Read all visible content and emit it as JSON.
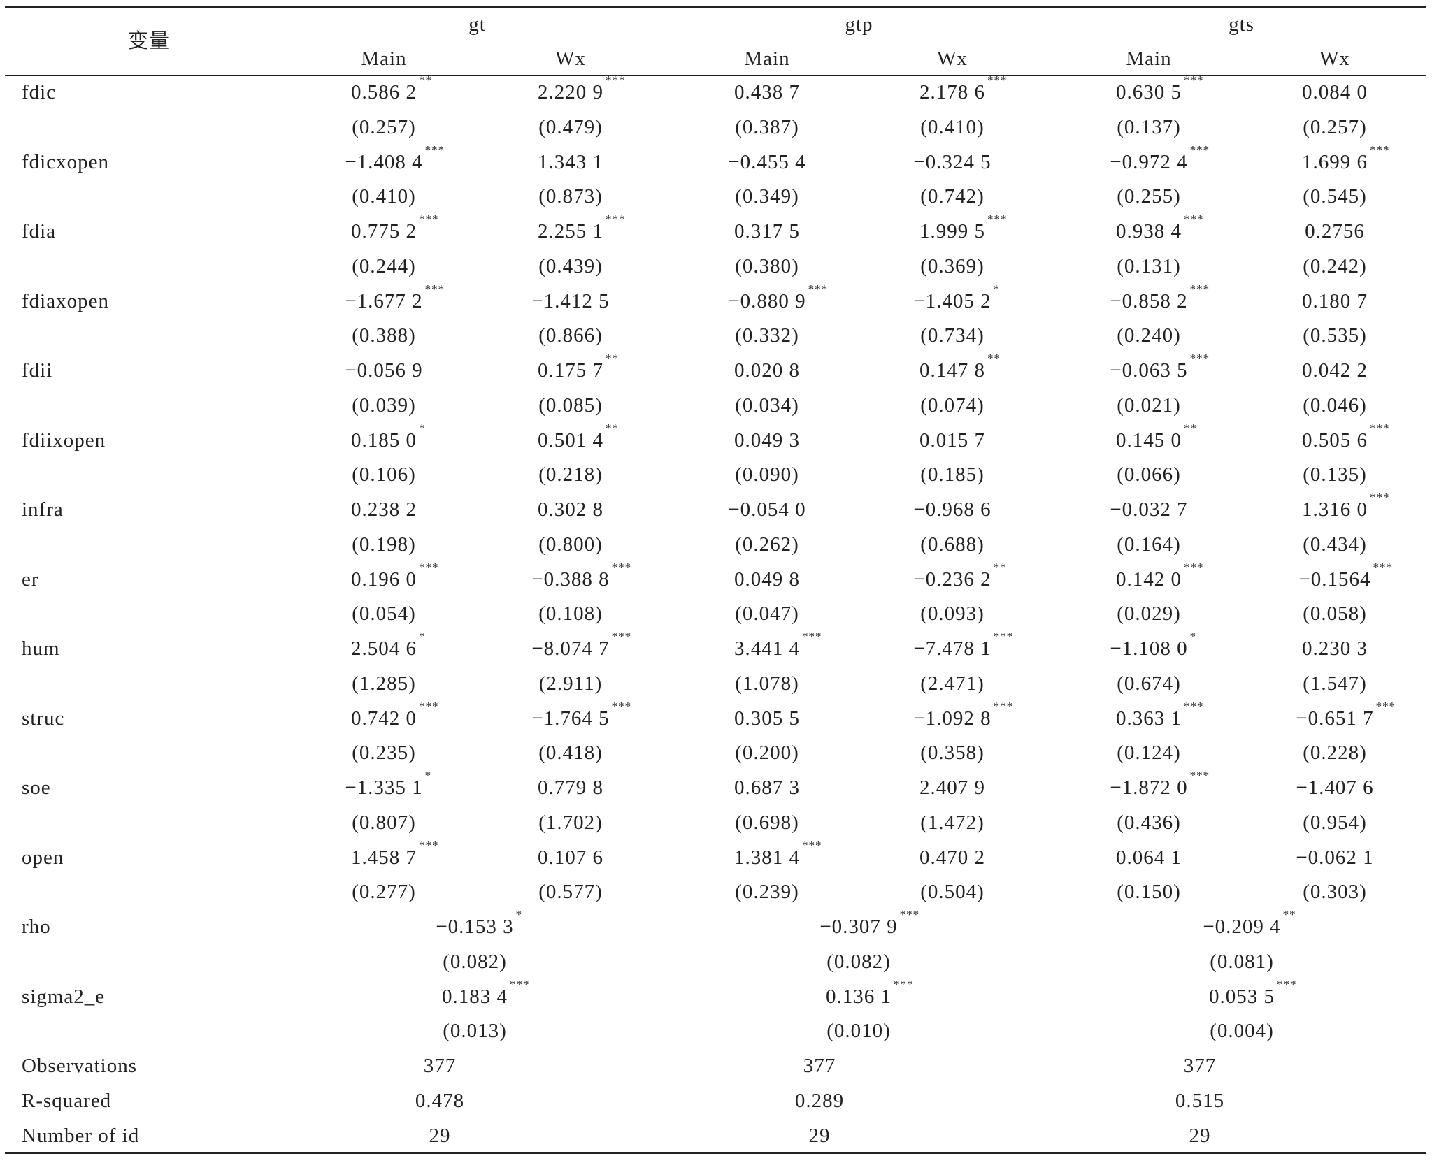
{
  "table": {
    "corner": "变量",
    "groups": [
      "gt",
      "gtp",
      "gts"
    ],
    "subheaders": [
      "Main",
      "Wx",
      "Main",
      "Wx",
      "Main",
      "Wx"
    ],
    "rows": [
      {
        "label": "fdic",
        "cells": [
          {
            "coef": "0.586 2",
            "stars": "**",
            "se": "(0.257)"
          },
          {
            "coef": "2.220 9",
            "stars": "***",
            "se": "(0.479)"
          },
          {
            "coef": "0.438 7",
            "se": "(0.387)"
          },
          {
            "coef": "2.178 6",
            "stars": "***",
            "se": "(0.410)"
          },
          {
            "coef": "0.630 5",
            "stars": "***",
            "se": "(0.137)"
          },
          {
            "coef": "0.084 0",
            "se": "(0.257)"
          }
        ]
      },
      {
        "label": "fdicxopen",
        "cells": [
          {
            "coef": "−1.408 4",
            "stars": "***",
            "se": "(0.410)"
          },
          {
            "coef": "1.343 1",
            "se": "(0.873)"
          },
          {
            "coef": "−0.455 4",
            "se": "(0.349)"
          },
          {
            "coef": "−0.324 5",
            "se": "(0.742)"
          },
          {
            "coef": "−0.972 4",
            "stars": "***",
            "se": "(0.255)"
          },
          {
            "coef": "1.699 6",
            "stars": "***",
            "se": "(0.545)"
          }
        ]
      },
      {
        "label": "fdia",
        "cells": [
          {
            "coef": "0.775 2",
            "stars": "***",
            "se": "(0.244)"
          },
          {
            "coef": "2.255 1",
            "stars": "***",
            "se": "(0.439)"
          },
          {
            "coef": "0.317 5",
            "se": "(0.380)"
          },
          {
            "coef": "1.999 5",
            "stars": "***",
            "se": "(0.369)"
          },
          {
            "coef": "0.938 4",
            "stars": "***",
            "se": "(0.131)"
          },
          {
            "coef": "0.2756",
            "se": "(0.242)"
          }
        ]
      },
      {
        "label": "fdiaxopen",
        "cells": [
          {
            "coef": "−1.677 2",
            "stars": "***",
            "se": "(0.388)"
          },
          {
            "coef": "−1.412 5",
            "se": "(0.866)"
          },
          {
            "coef": "−0.880 9",
            "stars": "***",
            "se": "(0.332)"
          },
          {
            "coef": "−1.405 2",
            "stars": "*",
            "se": "(0.734)"
          },
          {
            "coef": "−0.858 2",
            "stars": "***",
            "se": "(0.240)"
          },
          {
            "coef": "0.180 7",
            "se": "(0.535)"
          }
        ]
      },
      {
        "label": "fdii",
        "cells": [
          {
            "coef": "−0.056 9",
            "se": "(0.039)"
          },
          {
            "coef": "0.175 7",
            "stars": "**",
            "se": "(0.085)"
          },
          {
            "coef": "0.020 8",
            "se": "(0.034)"
          },
          {
            "coef": "0.147 8",
            "stars": "**",
            "se": "(0.074)"
          },
          {
            "coef": "−0.063 5",
            "stars": "***",
            "se": "(0.021)"
          },
          {
            "coef": "0.042 2",
            "se": "(0.046)"
          }
        ]
      },
      {
        "label": "fdiixopen",
        "cells": [
          {
            "coef": "0.185 0",
            "stars": "*",
            "se": "(0.106)"
          },
          {
            "coef": "0.501 4",
            "stars": "**",
            "se": "(0.218)"
          },
          {
            "coef": "0.049 3",
            "se": "(0.090)"
          },
          {
            "coef": "0.015 7",
            "se": "(0.185)"
          },
          {
            "coef": "0.145 0",
            "stars": "**",
            "se": "(0.066)"
          },
          {
            "coef": "0.505 6",
            "stars": "***",
            "se": "(0.135)"
          }
        ]
      },
      {
        "label": "infra",
        "cells": [
          {
            "coef": "0.238 2",
            "se": "(0.198)"
          },
          {
            "coef": "0.302 8",
            "se": "(0.800)"
          },
          {
            "coef": "−0.054 0",
            "se": "(0.262)"
          },
          {
            "coef": "−0.968 6",
            "se": "(0.688)"
          },
          {
            "coef": "−0.032 7",
            "se": "(0.164)"
          },
          {
            "coef": "1.316 0",
            "stars": "***",
            "se": "(0.434)"
          }
        ]
      },
      {
        "label": "er",
        "cells": [
          {
            "coef": "0.196 0",
            "stars": "***",
            "se": "(0.054)"
          },
          {
            "coef": "−0.388 8",
            "stars": "***",
            "se": "(0.108)"
          },
          {
            "coef": "0.049 8",
            "se": "(0.047)"
          },
          {
            "coef": "−0.236 2",
            "stars": "**",
            "se": "(0.093)"
          },
          {
            "coef": "0.142 0",
            "stars": "***",
            "se": "(0.029)"
          },
          {
            "coef": "−0.1564",
            "stars": "***",
            "se": "(0.058)"
          }
        ]
      },
      {
        "label": "hum",
        "cells": [
          {
            "coef": "2.504 6",
            "stars": "*",
            "se": "(1.285)"
          },
          {
            "coef": "−8.074 7",
            "stars": "***",
            "se": "(2.911)"
          },
          {
            "coef": "3.441 4",
            "stars": "***",
            "se": "(1.078)"
          },
          {
            "coef": "−7.478 1",
            "stars": "***",
            "se": "(2.471)"
          },
          {
            "coef": "−1.108 0",
            "stars": "*",
            "se": "(0.674)"
          },
          {
            "coef": "0.230 3",
            "se": "(1.547)"
          }
        ]
      },
      {
        "label": "struc",
        "cells": [
          {
            "coef": "0.742 0",
            "stars": "***",
            "se": "(0.235)"
          },
          {
            "coef": "−1.764 5",
            "stars": "***",
            "se": "(0.418)"
          },
          {
            "coef": "0.305 5",
            "se": "(0.200)"
          },
          {
            "coef": "−1.092 8",
            "stars": "***",
            "se": "(0.358)"
          },
          {
            "coef": "0.363 1",
            "stars": "***",
            "se": "(0.124)"
          },
          {
            "coef": "−0.651 7",
            "stars": "***",
            "se": "(0.228)"
          }
        ]
      },
      {
        "label": "soe",
        "cells": [
          {
            "coef": "−1.335 1",
            "stars": "*",
            "se": "(0.807)"
          },
          {
            "coef": "0.779 8",
            "se": "(1.702)"
          },
          {
            "coef": "0.687 3",
            "se": "(0.698)"
          },
          {
            "coef": "2.407 9",
            "se": "(1.472)"
          },
          {
            "coef": "−1.872 0",
            "stars": "***",
            "se": "(0.436)"
          },
          {
            "coef": "−1.407 6",
            "se": "(0.954)"
          }
        ]
      },
      {
        "label": "open",
        "cells": [
          {
            "coef": "1.458 7",
            "stars": "***",
            "se": "(0.277)"
          },
          {
            "coef": "0.107 6",
            "se": "(0.577)"
          },
          {
            "coef": "1.381 4",
            "stars": "***",
            "se": "(0.239)"
          },
          {
            "coef": "0.470 2",
            "se": "(0.504)"
          },
          {
            "coef": "0.064 1",
            "se": "(0.150)"
          },
          {
            "coef": "−0.062 1",
            "se": "(0.303)"
          }
        ]
      }
    ],
    "merged_rows": [
      {
        "label": "rho",
        "cells": [
          {
            "coef": "−0.153 3",
            "stars": "*",
            "se": "(0.082)"
          },
          {
            "coef": "−0.307 9",
            "stars": "***",
            "se": "(0.082)"
          },
          {
            "coef": "−0.209 4",
            "stars": "**",
            "se": "(0.081)"
          }
        ]
      },
      {
        "label": "sigma2_e",
        "cells": [
          {
            "coef": "0.183 4",
            "stars": "***",
            "se": "(0.013)"
          },
          {
            "coef": "0.136 1",
            "stars": "***",
            "se": "(0.010)"
          },
          {
            "coef": "0.053 5",
            "stars": "***",
            "se": "(0.004)"
          }
        ]
      }
    ],
    "stats_rows": [
      {
        "label": "Observations",
        "cells": [
          "377",
          "377",
          "377"
        ]
      },
      {
        "label": "R-squared",
        "cells": [
          "0.478",
          "0.289",
          "0.515"
        ]
      },
      {
        "label": "Number of id",
        "cells": [
          "29",
          "29",
          "29"
        ]
      }
    ]
  }
}
